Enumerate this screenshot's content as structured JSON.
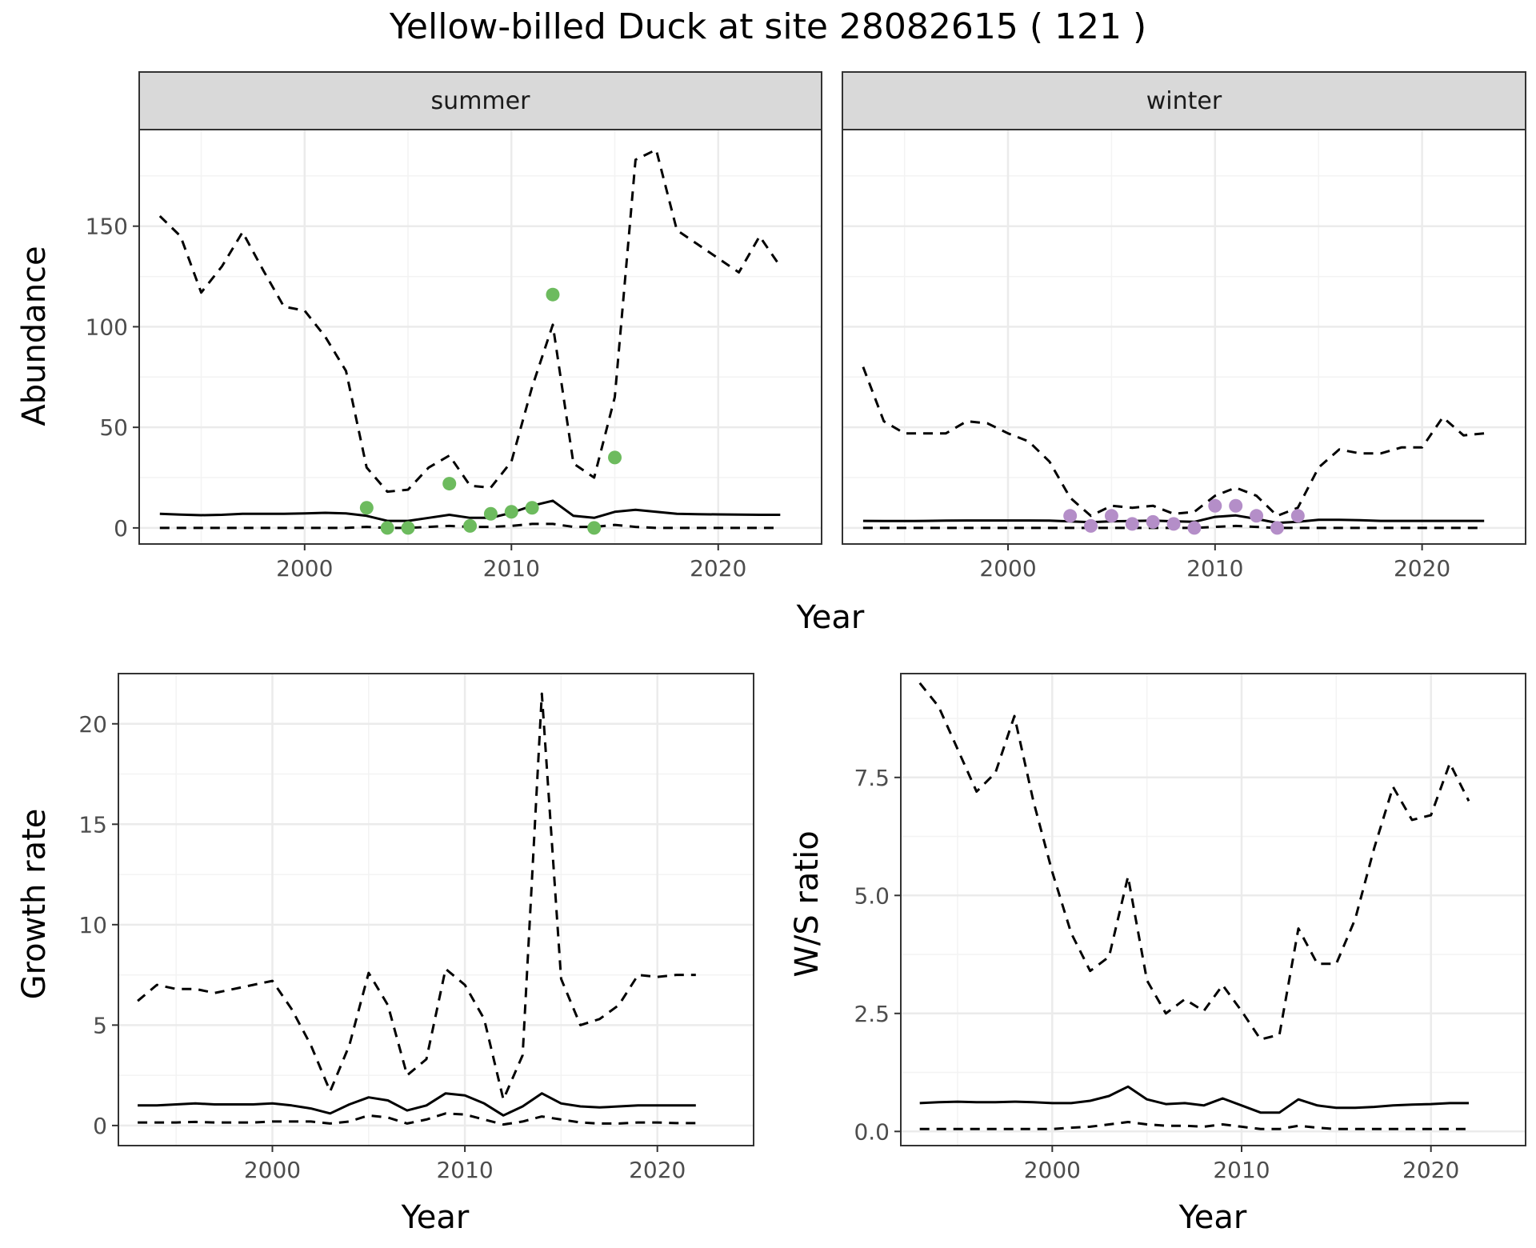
{
  "title": "Yellow-billed Duck at site 28082615 ( 121 )",
  "colors": {
    "summer_points": "#6dbb5e",
    "winter_points": "#b48ec8",
    "line": "#000000",
    "grid_major": "#ebebeb",
    "grid_minor": "#f3f3f3",
    "strip_bg": "#d9d9d9"
  },
  "chart_data": [
    {
      "panel": "abundance",
      "type": "line",
      "xlabel": "Year",
      "ylabel": "Abundance",
      "xlim": [
        1992,
        2025
      ],
      "ylim": [
        -8,
        198
      ],
      "xticks": [
        2000,
        2010,
        2020
      ],
      "yticks": [
        0,
        50,
        100,
        150
      ],
      "grid": true,
      "facets": [
        {
          "label": "summer",
          "point_color": "summer",
          "series": [
            {
              "style": "solid",
              "x": [
                1993,
                1994,
                1995,
                1996,
                1997,
                1998,
                1999,
                2000,
                2001,
                2002,
                2003,
                2004,
                2005,
                2006,
                2007,
                2008,
                2009,
                2010,
                2011,
                2012,
                2013,
                2014,
                2015,
                2016,
                2017,
                2018,
                2019,
                2020,
                2021,
                2022,
                2023
              ],
              "y": [
                7,
                6.6,
                6.3,
                6.5,
                7,
                7,
                7,
                7.2,
                7.5,
                7.2,
                6,
                3.5,
                3.5,
                5,
                6.5,
                5,
                5,
                7.5,
                11,
                13.5,
                6,
                5,
                8,
                9,
                8,
                7,
                6.8,
                6.7,
                6.6,
                6.5,
                6.5
              ]
            },
            {
              "style": "dashed",
              "x": [
                1993,
                1994,
                1995,
                1996,
                1997,
                1998,
                1999,
                2000,
                2001,
                2002,
                2003,
                2004,
                2005,
                2006,
                2007,
                2008,
                2009,
                2010,
                2011,
                2012,
                2013,
                2014,
                2015,
                2016,
                2017,
                2018,
                2019,
                2020,
                2021,
                2022,
                2023
              ],
              "y": [
                155,
                145,
                117,
                130,
                147,
                128,
                110,
                108,
                95,
                78,
                30,
                18,
                19,
                30,
                36,
                21,
                20,
                33,
                70,
                101,
                32,
                25,
                65,
                183,
                188,
                148,
                141,
                134,
                127,
                145,
                130
              ]
            },
            {
              "style": "dashed",
              "x": [
                1993,
                1994,
                1995,
                1996,
                1997,
                1998,
                1999,
                2000,
                2001,
                2002,
                2003,
                2004,
                2005,
                2006,
                2007,
                2008,
                2009,
                2010,
                2011,
                2012,
                2013,
                2014,
                2015,
                2016,
                2017,
                2018,
                2019,
                2020,
                2021,
                2022,
                2023
              ],
              "y": [
                0,
                0,
                0,
                0,
                0,
                0,
                0,
                0,
                0,
                0,
                0.5,
                0,
                0,
                0.5,
                1,
                0.5,
                0.5,
                1,
                2,
                2,
                0.5,
                0.5,
                1.5,
                0.5,
                0,
                0,
                0,
                0,
                0,
                0,
                0
              ]
            }
          ],
          "points": {
            "x": [
              2003,
              2004,
              2005,
              2007,
              2008,
              2009,
              2010,
              2011,
              2012,
              2014,
              2015
            ],
            "y": [
              10,
              0,
              0,
              22,
              1,
              7,
              8,
              10,
              116,
              0,
              35
            ]
          }
        },
        {
          "label": "winter",
          "point_color": "winter",
          "series": [
            {
              "style": "solid",
              "x": [
                1993,
                1994,
                1995,
                1996,
                1997,
                1998,
                1999,
                2000,
                2001,
                2002,
                2003,
                2004,
                2005,
                2006,
                2007,
                2008,
                2009,
                2010,
                2011,
                2012,
                2013,
                2014,
                2015,
                2016,
                2017,
                2018,
                2019,
                2020,
                2021,
                2022,
                2023
              ],
              "y": [
                3.5,
                3.4,
                3.4,
                3.5,
                3.6,
                3.7,
                3.7,
                3.7,
                3.7,
                3.6,
                3.2,
                2.8,
                3.3,
                3.4,
                3.6,
                3.3,
                3,
                5.5,
                6.2,
                4.5,
                2.5,
                3,
                4,
                4,
                3.8,
                3.5,
                3.5,
                3.5,
                3.5,
                3.5,
                3.5
              ]
            },
            {
              "style": "dashed",
              "x": [
                1993,
                1994,
                1995,
                1996,
                1997,
                1998,
                1999,
                2000,
                2001,
                2002,
                2003,
                2004,
                2005,
                2006,
                2007,
                2008,
                2009,
                2010,
                2011,
                2012,
                2013,
                2014,
                2015,
                2016,
                2017,
                2018,
                2019,
                2020,
                2021,
                2022,
                2023
              ],
              "y": [
                80,
                53,
                47,
                47,
                47,
                53,
                52,
                47,
                43,
                33,
                15,
                6,
                11,
                10,
                11,
                7,
                8,
                16,
                20,
                16,
                6,
                10,
                30,
                39,
                37,
                37,
                40,
                40,
                55,
                46,
                47
              ]
            },
            {
              "style": "dashed",
              "x": [
                1993,
                1994,
                1995,
                1996,
                1997,
                1998,
                1999,
                2000,
                2001,
                2002,
                2003,
                2004,
                2005,
                2006,
                2007,
                2008,
                2009,
                2010,
                2011,
                2012,
                2013,
                2014,
                2015,
                2016,
                2017,
                2018,
                2019,
                2020,
                2021,
                2022,
                2023
              ],
              "y": [
                0,
                0,
                0,
                0,
                0,
                0,
                0,
                0,
                0,
                0,
                0,
                0,
                0,
                0,
                0,
                0,
                0,
                0.5,
                1,
                0.5,
                0,
                0,
                0,
                0,
                0,
                0,
                0,
                0,
                0,
                0,
                0
              ]
            }
          ],
          "points": {
            "x": [
              2003,
              2004,
              2005,
              2006,
              2007,
              2008,
              2009,
              2010,
              2011,
              2012,
              2013,
              2014
            ],
            "y": [
              6,
              1,
              6,
              2,
              3,
              2,
              0,
              11,
              11,
              6,
              0,
              6
            ]
          }
        }
      ]
    },
    {
      "panel": "growth",
      "type": "line",
      "xlabel": "Year",
      "ylabel": "Growth rate",
      "xlim": [
        1992,
        2025
      ],
      "ylim": [
        -1,
        22.5
      ],
      "xticks": [
        2000,
        2010,
        2020
      ],
      "yticks": [
        0,
        5,
        10,
        15,
        20
      ],
      "grid": true,
      "series": [
        {
          "style": "solid",
          "x": [
            1993,
            1994,
            1995,
            1996,
            1997,
            1998,
            1999,
            2000,
            2001,
            2002,
            2003,
            2004,
            2005,
            2006,
            2007,
            2008,
            2009,
            2010,
            2011,
            2012,
            2013,
            2014,
            2015,
            2016,
            2017,
            2018,
            2019,
            2020,
            2021,
            2022
          ],
          "y": [
            1,
            1,
            1.05,
            1.1,
            1.05,
            1.05,
            1.05,
            1.1,
            1,
            0.85,
            0.6,
            1.05,
            1.4,
            1.25,
            0.75,
            1,
            1.6,
            1.5,
            1.1,
            0.5,
            0.95,
            1.6,
            1.1,
            0.95,
            0.9,
            0.95,
            1,
            1,
            1,
            1
          ]
        },
        {
          "style": "dashed",
          "x": [
            1993,
            1994,
            1995,
            1996,
            1997,
            1998,
            1999,
            2000,
            2001,
            2002,
            2003,
            2004,
            2005,
            2006,
            2007,
            2008,
            2009,
            2010,
            2011,
            2012,
            2013,
            2014,
            2015,
            2016,
            2017,
            2018,
            2019,
            2020,
            2021,
            2022
          ],
          "y": [
            6.2,
            7,
            6.8,
            6.8,
            6.6,
            6.8,
            7,
            7.2,
            5.8,
            4,
            1.7,
            4,
            7.6,
            6,
            2.5,
            3.3,
            7.8,
            7,
            5.3,
            1.3,
            3.5,
            21.5,
            7.3,
            5,
            5.3,
            6,
            7.5,
            7.4,
            7.5,
            7.5
          ]
        },
        {
          "style": "dashed",
          "x": [
            1993,
            1994,
            1995,
            1996,
            1997,
            1998,
            1999,
            2000,
            2001,
            2002,
            2003,
            2004,
            2005,
            2006,
            2007,
            2008,
            2009,
            2010,
            2011,
            2012,
            2013,
            2014,
            2015,
            2016,
            2017,
            2018,
            2019,
            2020,
            2021,
            2022
          ],
          "y": [
            0.15,
            0.15,
            0.15,
            0.18,
            0.15,
            0.15,
            0.15,
            0.2,
            0.2,
            0.2,
            0.1,
            0.2,
            0.5,
            0.4,
            0.1,
            0.3,
            0.6,
            0.55,
            0.3,
            0.05,
            0.2,
            0.45,
            0.3,
            0.15,
            0.1,
            0.1,
            0.15,
            0.15,
            0.12,
            0.12
          ]
        }
      ]
    },
    {
      "panel": "ratio",
      "type": "line",
      "xlabel": "Year",
      "ylabel": "W/S ratio",
      "xlim": [
        1992,
        2025
      ],
      "ylim": [
        -0.3,
        9.7
      ],
      "xticks": [
        2000,
        2010,
        2020
      ],
      "yticks": [
        0.0,
        2.5,
        5.0,
        7.5
      ],
      "ytick_labels": [
        "0.0",
        "2.5",
        "5.0",
        "7.5"
      ],
      "grid": true,
      "series": [
        {
          "style": "solid",
          "x": [
            1993,
            1994,
            1995,
            1996,
            1997,
            1998,
            1999,
            2000,
            2001,
            2002,
            2003,
            2004,
            2005,
            2006,
            2007,
            2008,
            2009,
            2010,
            2011,
            2012,
            2013,
            2014,
            2015,
            2016,
            2017,
            2018,
            2019,
            2020,
            2021,
            2022
          ],
          "y": [
            0.6,
            0.62,
            0.63,
            0.62,
            0.62,
            0.63,
            0.62,
            0.6,
            0.6,
            0.65,
            0.75,
            0.95,
            0.68,
            0.58,
            0.6,
            0.55,
            0.7,
            0.55,
            0.4,
            0.4,
            0.68,
            0.55,
            0.5,
            0.5,
            0.52,
            0.55,
            0.57,
            0.58,
            0.6,
            0.6
          ]
        },
        {
          "style": "dashed",
          "x": [
            1993,
            1994,
            1995,
            1996,
            1997,
            1998,
            1999,
            2000,
            2001,
            2002,
            2003,
            2004,
            2005,
            2006,
            2007,
            2008,
            2009,
            2010,
            2011,
            2012,
            2013,
            2014,
            2015,
            2016,
            2017,
            2018,
            2019,
            2020,
            2021,
            2022
          ],
          "y": [
            9.5,
            9,
            8.1,
            7.2,
            7.6,
            8.8,
            7,
            5.5,
            4.2,
            3.4,
            3.7,
            5.4,
            3.2,
            2.5,
            2.8,
            2.55,
            3.1,
            2.55,
            1.95,
            2.05,
            4.3,
            3.55,
            3.55,
            4.5,
            6,
            7.3,
            6.6,
            6.7,
            7.8,
            7
          ]
        },
        {
          "style": "dashed",
          "x": [
            1993,
            1994,
            1995,
            1996,
            1997,
            1998,
            1999,
            2000,
            2001,
            2002,
            2003,
            2004,
            2005,
            2006,
            2007,
            2008,
            2009,
            2010,
            2011,
            2012,
            2013,
            2014,
            2015,
            2016,
            2017,
            2018,
            2019,
            2020,
            2021,
            2022
          ],
          "y": [
            0.05,
            0.05,
            0.05,
            0.05,
            0.05,
            0.05,
            0.05,
            0.05,
            0.08,
            0.1,
            0.15,
            0.2,
            0.15,
            0.12,
            0.12,
            0.1,
            0.15,
            0.1,
            0.05,
            0.05,
            0.12,
            0.08,
            0.05,
            0.05,
            0.05,
            0.05,
            0.05,
            0.05,
            0.05,
            0.05
          ]
        }
      ]
    }
  ]
}
